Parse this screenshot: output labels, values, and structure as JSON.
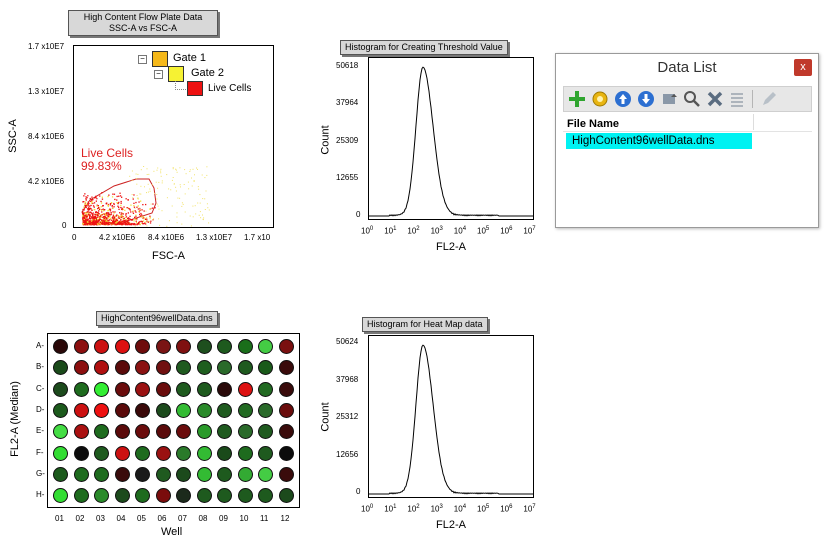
{
  "scatter": {
    "title_line1": "High Content Flow Plate Data",
    "title_line2": "SSC-A vs FSC-A",
    "y_label": "SSC-A",
    "x_label": "FSC-A",
    "y_ticks": [
      "1.7 x10E7",
      "1.3 x10E7",
      "8.4 x10E6",
      "4.2 x10E6",
      "0"
    ],
    "x_ticks": [
      "0",
      "4.2 x10E6",
      "8.4 x10E6",
      "1.3 x10E7",
      "1.7 x10"
    ],
    "gate_text": "Live Cells",
    "gate_pct": "99.83%",
    "tree": {
      "gate1": "Gate 1",
      "gate2": "Gate 2",
      "live": "Live Cells"
    }
  },
  "hist1": {
    "title": "Histogram for Creating Threshold Value",
    "y_label": "Count",
    "x_label": "FL2-A",
    "y_ticks": [
      "50618",
      "37964",
      "25309",
      "12655",
      "0"
    ]
  },
  "hist2": {
    "title": "Histogram for Heat Map data",
    "y_label": "Count",
    "x_label": "FL2-A",
    "y_ticks": [
      "50624",
      "37968",
      "25312",
      "12656",
      "0"
    ]
  },
  "decades": [
    "0",
    "1",
    "2",
    "3",
    "4",
    "5",
    "6",
    "7"
  ],
  "heatmap": {
    "title": "HighContent96wellData.dns",
    "y_label": "FL2-A (Median)",
    "x_label": "Well",
    "rows": [
      "A-",
      "B-",
      "C-",
      "D-",
      "E-",
      "F-",
      "G-",
      "H-"
    ],
    "cols": [
      "01",
      "02",
      "03",
      "04",
      "05",
      "06",
      "07",
      "08",
      "09",
      "10",
      "11",
      "12"
    ],
    "colors": [
      [
        "#2a0808",
        "#8c0f0f",
        "#cc1111",
        "#dd1111",
        "#6e0c0c",
        "#7a1414",
        "#7f1010",
        "#1e4f1e",
        "#1e5a1e",
        "#1a6e1a",
        "#44cc44",
        "#7a1010"
      ],
      [
        "#1a4a1a",
        "#8c0f0f",
        "#b01010",
        "#5a0a0a",
        "#8a1212",
        "#701010",
        "#1f5a1f",
        "#1f5e1f",
        "#2a6a2a",
        "#1f5a1f",
        "#1a5a1a",
        "#3a0b0b"
      ],
      [
        "#1c4a1c",
        "#1e6b1e",
        "#33ee33",
        "#6a0c0c",
        "#9a1111",
        "#6a0c0c",
        "#1e5a1e",
        "#1e5a1e",
        "#2a0a0a",
        "#dd1111",
        "#226a22",
        "#3a0b0b"
      ],
      [
        "#1c5a1c",
        "#cc1111",
        "#ee1111",
        "#5a0a0a",
        "#3a0909",
        "#1c4a1c",
        "#33bb33",
        "#2a8a2a",
        "#1f5a1f",
        "#226a22",
        "#2a6a2a",
        "#6a0c0c"
      ],
      [
        "#44dd44",
        "#aa1111",
        "#1e6b1e",
        "#5a0a0a",
        "#6a0c0c",
        "#5a0a0a",
        "#6a0c0c",
        "#2a9a2a",
        "#1f5a1f",
        "#2a6a2a",
        "#1f5a1f",
        "#3a0b0b"
      ],
      [
        "#33dd33",
        "#0c0c0c",
        "#1e5a1e",
        "#cc1111",
        "#1e6b1e",
        "#9a1111",
        "#2a7a2a",
        "#33bb33",
        "#1a4a1a",
        "#1e6b1e",
        "#1f5a1f",
        "#0c0c0c"
      ],
      [
        "#1c5a1c",
        "#1e6b1e",
        "#1e6b1e",
        "#3a0b0b",
        "#1a1a1a",
        "#1f5a1f",
        "#1c4a1c",
        "#33bb33",
        "#1e5a1e",
        "#33aa33",
        "#44cc44",
        "#3a0b0b"
      ],
      [
        "#33dd33",
        "#1e6b1e",
        "#2a8a2a",
        "#1c4a1c",
        "#1e6b1e",
        "#7a0c0c",
        "#1c2a1c",
        "#1e5a1e",
        "#1e5a1e",
        "#1e5a1e",
        "#1e5a1e",
        "#1c4a1c"
      ]
    ]
  },
  "data_list": {
    "title": "Data List",
    "close": "x",
    "column": "File Name",
    "files": [
      "HighContent96wellData.dns"
    ]
  }
}
